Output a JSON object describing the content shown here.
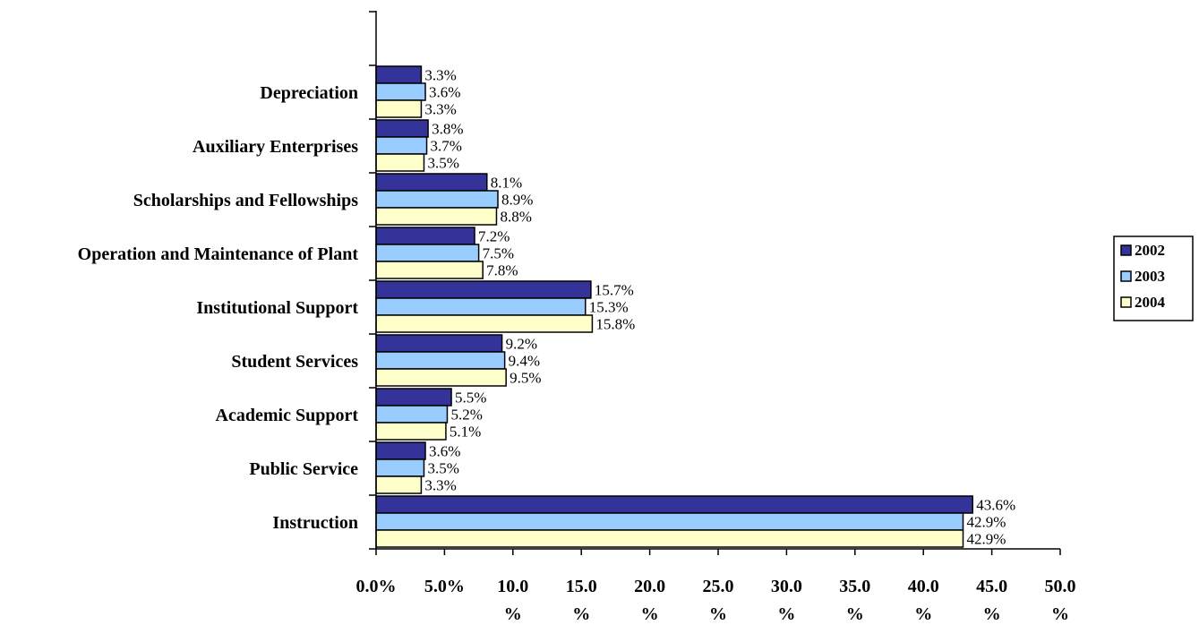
{
  "chart_data": {
    "type": "bar",
    "orientation": "horizontal",
    "categories": [
      "Instruction",
      "Public Service",
      "Academic Support",
      "Student Services",
      "Institutional Support",
      "Operation and Maintenance of Plant",
      "Scholarships and Fellowships",
      "Auxiliary Enterprises",
      "Depreciation"
    ],
    "series": [
      {
        "name": "2002",
        "color": "#333399",
        "values": [
          43.6,
          3.6,
          5.5,
          9.2,
          15.7,
          7.2,
          8.1,
          3.8,
          3.3
        ],
        "labels": [
          "43.6%",
          "3.6%",
          "5.5%",
          "9.2%",
          "15.7%",
          "7.2%",
          "8.1%",
          "3.8%",
          "3.3%"
        ]
      },
      {
        "name": "2003",
        "color": "#99CCFF",
        "values": [
          42.9,
          3.5,
          5.2,
          9.4,
          15.3,
          7.5,
          8.9,
          3.7,
          3.6
        ],
        "labels": [
          "42.9%",
          "3.5%",
          "5.2%",
          "9.4%",
          "15.3%",
          "7.5%",
          "8.9%",
          "3.7%",
          "3.6%"
        ]
      },
      {
        "name": "2004",
        "color": "#FFFFCC",
        "values": [
          42.9,
          3.3,
          5.1,
          9.5,
          15.8,
          7.8,
          8.8,
          3.5,
          3.3
        ],
        "labels": [
          "42.9%",
          "3.3%",
          "5.1%",
          "9.5%",
          "15.8%",
          "7.8%",
          "8.8%",
          "3.5%",
          "3.3%"
        ]
      }
    ],
    "xlim": [
      0,
      50
    ],
    "x_ticks": [
      {
        "value": 0,
        "label_line1": "0.0%",
        "label_line2": ""
      },
      {
        "value": 5,
        "label_line1": "5.0%",
        "label_line2": ""
      },
      {
        "value": 10,
        "label_line1": "10.0",
        "label_line2": "%"
      },
      {
        "value": 15,
        "label_line1": "15.0",
        "label_line2": "%"
      },
      {
        "value": 20,
        "label_line1": "20.0",
        "label_line2": "%"
      },
      {
        "value": 25,
        "label_line1": "25.0",
        "label_line2": "%"
      },
      {
        "value": 30,
        "label_line1": "30.0",
        "label_line2": "%"
      },
      {
        "value": 35,
        "label_line1": "35.0",
        "label_line2": "%"
      },
      {
        "value": 40,
        "label_line1": "40.0",
        "label_line2": "%"
      },
      {
        "value": 45,
        "label_line1": "45.0",
        "label_line2": "%"
      },
      {
        "value": 50,
        "label_line1": "50.0",
        "label_line2": "%"
      }
    ],
    "legend": {
      "position": "right",
      "entries": [
        "2002",
        "2003",
        "2004"
      ]
    },
    "grid": false,
    "title": "",
    "xlabel": "",
    "ylabel": ""
  }
}
